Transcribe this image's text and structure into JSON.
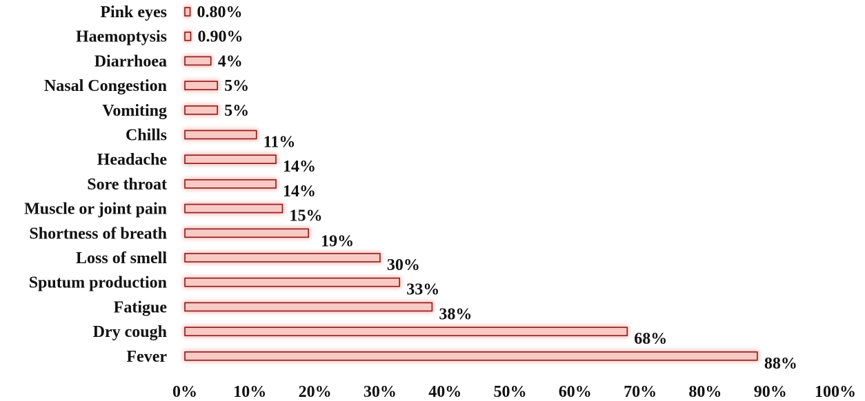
{
  "chart_data": {
    "type": "bar",
    "orientation": "horizontal",
    "categories": [
      "Pink eyes",
      "Haemoptysis",
      "Diarrhoea",
      "Nasal Congestion",
      "Vomiting",
      "Chills",
      "Headache",
      "Sore throat",
      "Muscle or joint pain",
      "Shortness of breath",
      "Loss of smell ",
      "Sputum production",
      "Fatigue",
      "Dry cough",
      "Fever "
    ],
    "values": [
      0.8,
      0.9,
      4,
      5,
      5,
      11,
      14,
      14,
      15,
      19,
      30,
      33,
      38,
      68,
      88
    ],
    "data_labels": [
      "0.80%",
      "0.90%",
      "4%",
      "5%",
      "5%",
      "11%",
      "14%",
      "14%",
      "15%",
      "19%",
      "30%",
      "33%",
      "38%",
      "68%",
      "88%"
    ],
    "x_ticks": [
      "0%",
      "10%",
      "20%",
      "30%",
      "40%",
      "50%",
      "60%",
      "70%",
      "80%",
      "90%",
      "100%"
    ],
    "xlim": [
      0,
      100
    ],
    "title": "",
    "xlabel": "",
    "ylabel": "",
    "grid": false,
    "legend": "none",
    "colors": {
      "bar_fill": "#f9c9c4",
      "bar_stroke": "#8b1a1a",
      "bar_glow": "#f3a29a"
    }
  }
}
